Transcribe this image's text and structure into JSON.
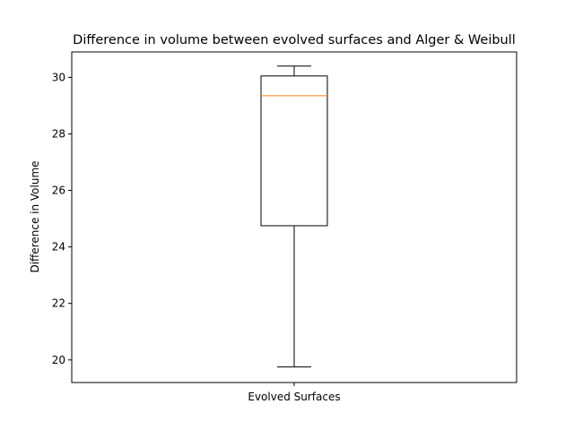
{
  "chart_data": {
    "type": "box",
    "title": "Difference in volume between evolved surfaces and Alger & Weibull",
    "xlabel": "",
    "ylabel": "Difference in Volume",
    "categories": [
      "Evolved Surfaces"
    ],
    "ylim": [
      19.2,
      30.9
    ],
    "yticks": [
      20,
      22,
      24,
      26,
      28,
      30
    ],
    "grid": false,
    "boxes": [
      {
        "category": "Evolved Surfaces",
        "whisker_low": 19.75,
        "q1": 24.75,
        "median": 29.35,
        "q3": 30.05,
        "whisker_high": 30.4
      }
    ],
    "colors": {
      "box": "#000000",
      "median": "#ff7f0e",
      "whisker": "#000000"
    }
  }
}
